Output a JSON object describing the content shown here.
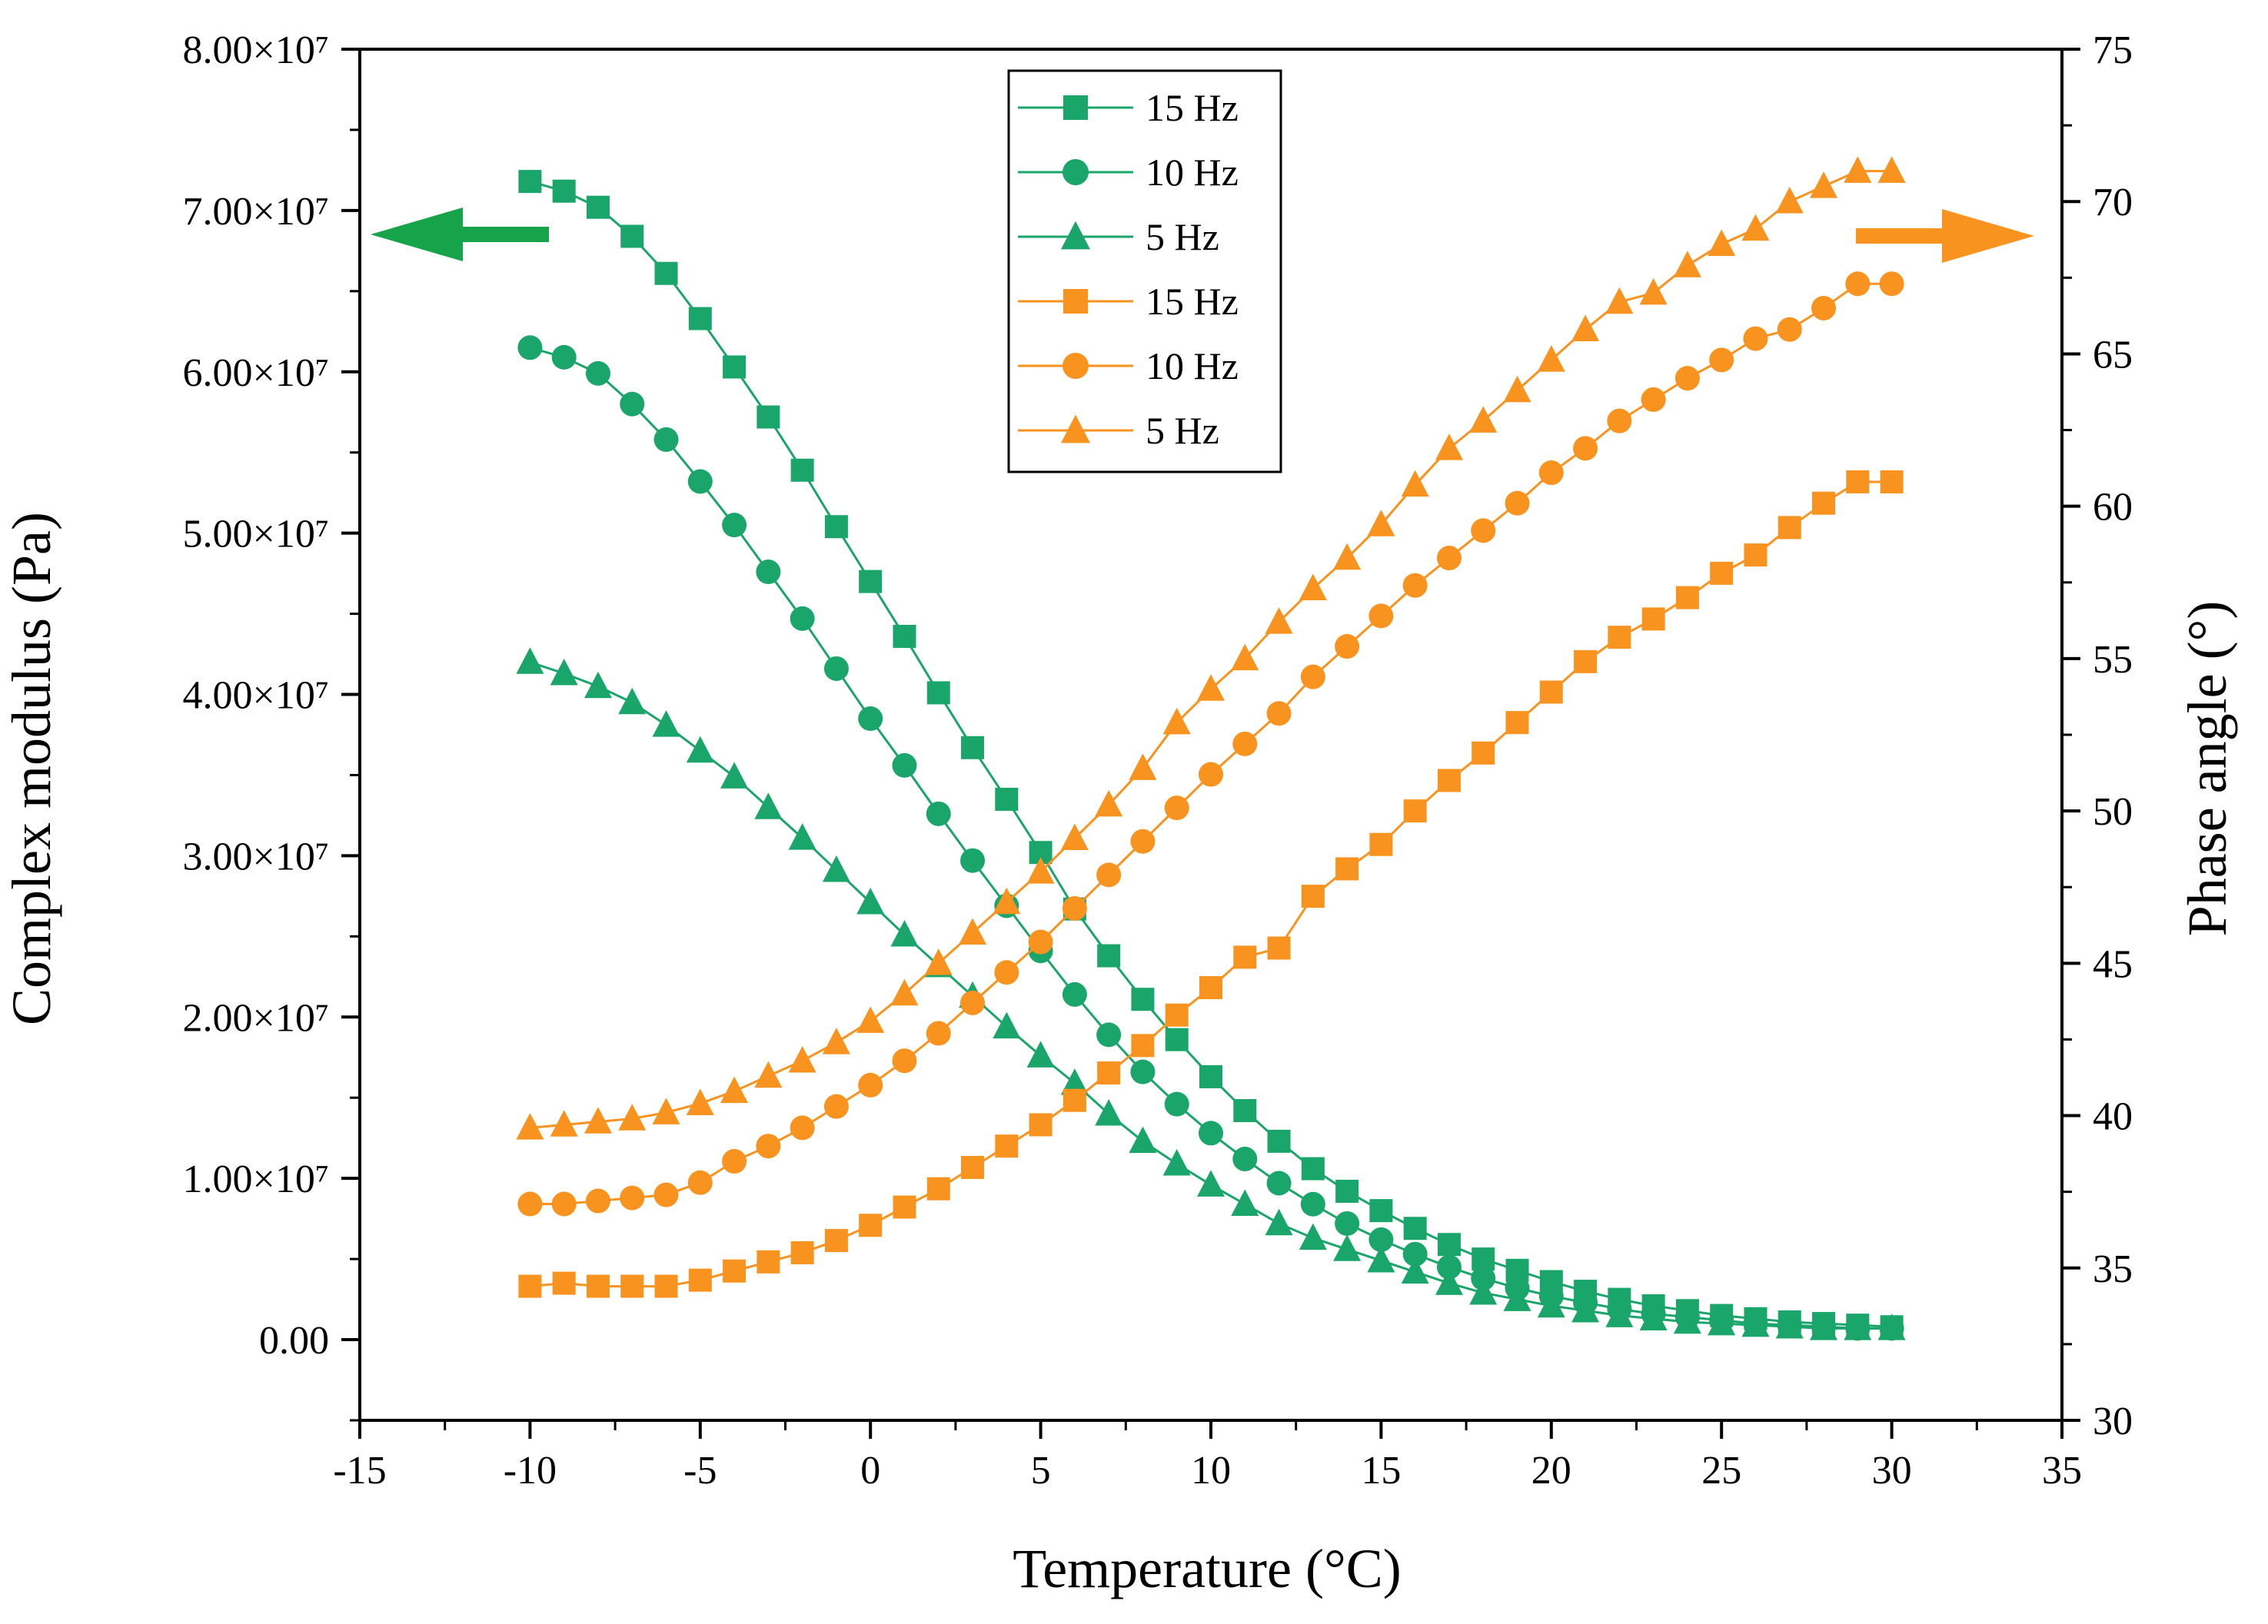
{
  "chart_data": {
    "type": "line",
    "title": "",
    "xlabel": "Temperature (°C)",
    "ylabel_left": "Complex modulus (Pa)",
    "ylabel_right": "Phase angle (°)",
    "xlim": [
      -15,
      35
    ],
    "ylim_left": [
      -5000000,
      80000000
    ],
    "ylim_right": [
      30,
      75
    ],
    "x_ticks": [
      -15,
      -10,
      -5,
      0,
      5,
      10,
      15,
      20,
      25,
      30,
      35
    ],
    "x_tick_labels": [
      "-15",
      "-10",
      "-5",
      "0",
      "5",
      "10",
      "15",
      "20",
      "25",
      "30",
      "35"
    ],
    "y_left_ticks": [
      0,
      10000000,
      20000000,
      30000000,
      40000000,
      50000000,
      60000000,
      70000000,
      80000000
    ],
    "y_left_tick_labels": [
      "0.00",
      "1.00×10⁷",
      "2.00×10⁷",
      "3.00×10⁷",
      "4.00×10⁷",
      "5.00×10⁷",
      "6.00×10⁷",
      "7.00×10⁷",
      "8.00×10⁷"
    ],
    "y_right_ticks": [
      30,
      35,
      40,
      45,
      50,
      55,
      60,
      65,
      70,
      75
    ],
    "y_right_tick_labels": [
      "30",
      "35",
      "40",
      "45",
      "50",
      "55",
      "60",
      "65",
      "70",
      "75"
    ],
    "x": [
      -10,
      -9,
      -8,
      -7,
      -6,
      -5,
      -4,
      -3,
      -2,
      -1,
      0,
      1,
      2,
      3,
      4,
      5,
      6,
      7,
      8,
      9,
      10,
      11,
      12,
      13,
      14,
      15,
      16,
      17,
      18,
      19,
      20,
      21,
      22,
      23,
      24,
      25,
      26,
      27,
      28,
      29,
      30
    ],
    "series": [
      {
        "name": "15 Hz",
        "axis": "left",
        "marker": "square",
        "color": "#1aa56b",
        "values": [
          71800000,
          71200000,
          70200000,
          68400000,
          66100000,
          63300000,
          60300000,
          57200000,
          53900000,
          50400000,
          47000000,
          43600000,
          40100000,
          36700000,
          33500000,
          30200000,
          26700000,
          23800000,
          21100000,
          18600000,
          16300000,
          14200000,
          12300000,
          10600000,
          9200000,
          8000000,
          6900000,
          5900000,
          5000000,
          4300000,
          3600000,
          3000000,
          2500000,
          2100000,
          1800000,
          1500000,
          1300000,
          1100000,
          1000000,
          900000,
          800000
        ]
      },
      {
        "name": "10 Hz",
        "axis": "left",
        "marker": "circle",
        "color": "#1aa56b",
        "values": [
          61500000,
          60900000,
          59900000,
          58000000,
          55800000,
          53200000,
          50500000,
          47600000,
          44700000,
          41600000,
          38500000,
          35600000,
          32600000,
          29700000,
          26900000,
          24100000,
          21400000,
          18900000,
          16600000,
          14600000,
          12800000,
          11200000,
          9700000,
          8400000,
          7200000,
          6200000,
          5300000,
          4500000,
          3800000,
          3200000,
          2700000,
          2300000,
          1900000,
          1600000,
          1400000,
          1200000,
          1000000,
          900000,
          800000,
          700000,
          700000
        ]
      },
      {
        "name": "5 Hz",
        "axis": "left",
        "marker": "triangle",
        "color": "#1aa56b",
        "values": [
          42000000,
          41300000,
          40500000,
          39500000,
          38100000,
          36500000,
          34900000,
          33000000,
          31100000,
          29100000,
          27100000,
          25100000,
          23200000,
          21300000,
          19400000,
          17600000,
          15900000,
          14000000,
          12300000,
          10900000,
          9600000,
          8400000,
          7200000,
          6300000,
          5600000,
          4900000,
          4200000,
          3500000,
          2900000,
          2500000,
          2100000,
          1800000,
          1500000,
          1300000,
          1100000,
          1000000,
          900000,
          800000,
          700000,
          700000,
          700000
        ]
      },
      {
        "name": "15 Hz",
        "axis": "right",
        "marker": "square",
        "color": "#f7931e",
        "values": [
          34.4,
          34.5,
          34.4,
          34.4,
          34.4,
          34.6,
          34.9,
          35.2,
          35.5,
          35.9,
          36.4,
          37.0,
          37.6,
          38.3,
          39.0,
          39.7,
          40.5,
          41.4,
          42.3,
          43.3,
          44.2,
          45.2,
          45.5,
          47.2,
          48.1,
          48.9,
          50.0,
          51.0,
          51.9,
          52.9,
          53.9,
          54.9,
          55.7,
          56.3,
          57.0,
          57.8,
          58.4,
          59.3,
          60.1,
          60.8,
          60.8
        ]
      },
      {
        "name": "10 Hz",
        "axis": "right",
        "marker": "circle",
        "color": "#f7931e",
        "values": [
          37.1,
          37.1,
          37.2,
          37.3,
          37.4,
          37.8,
          38.5,
          39.0,
          39.6,
          40.3,
          41.0,
          41.8,
          42.7,
          43.7,
          44.7,
          45.7,
          46.8,
          47.9,
          49.0,
          50.1,
          51.2,
          52.2,
          53.2,
          54.4,
          55.4,
          56.4,
          57.4,
          58.3,
          59.2,
          60.1,
          61.1,
          61.9,
          62.8,
          63.5,
          64.2,
          64.8,
          65.5,
          65.8,
          66.5,
          67.3,
          67.3
        ]
      },
      {
        "name": "5 Hz",
        "axis": "right",
        "marker": "triangle",
        "color": "#f7931e",
        "values": [
          39.6,
          39.7,
          39.8,
          39.9,
          40.1,
          40.4,
          40.8,
          41.3,
          41.8,
          42.4,
          43.1,
          44.0,
          45.0,
          46.0,
          47.0,
          48.0,
          49.1,
          50.2,
          51.4,
          52.9,
          54.0,
          55.0,
          56.2,
          57.3,
          58.3,
          59.4,
          60.7,
          61.9,
          62.8,
          63.8,
          64.8,
          65.8,
          66.7,
          67.0,
          67.9,
          68.6,
          69.1,
          70.0,
          70.5,
          71.0,
          71.0
        ]
      }
    ],
    "legend_position": "top-center",
    "annotations": [
      "green arrow pointing left toward left axis",
      "orange arrow pointing right toward right axis"
    ]
  },
  "colors": {
    "green": "#1aa56b",
    "orange": "#f7931e",
    "arrow_green": "#17a34a",
    "arrow_orange": "#f7931e"
  }
}
